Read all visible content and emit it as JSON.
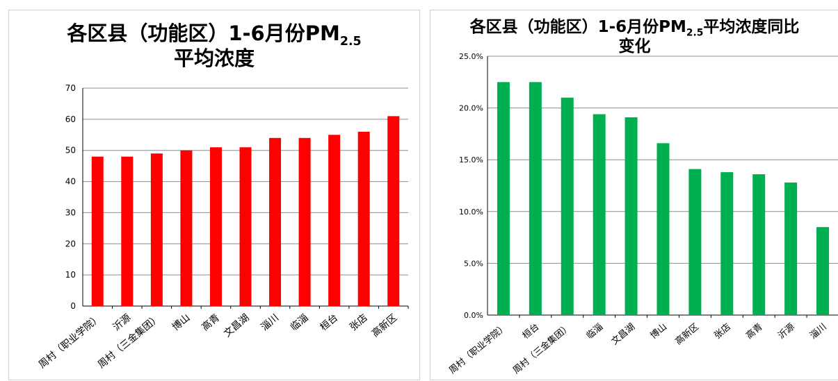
{
  "chart_data": [
    {
      "type": "bar",
      "title_main": "各区县（功能区）1-6月份PM",
      "title_sub": "2.5",
      "title_line2": "平均浓度",
      "categories": [
        "周村（职业学院）",
        "沂源",
        "周村（三金集团）",
        "博山",
        "高青",
        "文昌湖",
        "淄川",
        "临淄",
        "桓台",
        "张店",
        "高新区"
      ],
      "values": [
        48,
        48,
        49,
        50,
        51,
        51,
        54,
        54,
        55,
        56,
        61
      ],
      "ylim": [
        0,
        70
      ],
      "yticks": [
        "0",
        "10",
        "20",
        "30",
        "40",
        "50",
        "60",
        "70"
      ],
      "xlabel": "",
      "ylabel": "",
      "color": "#ff0000",
      "grid": true
    },
    {
      "type": "bar",
      "title_main": "各区县（功能区）1-6月份PM",
      "title_sub": "2.5",
      "title_tail": "平均浓度同比",
      "title_line2": "变化",
      "categories": [
        "周村（职业学院）",
        "桓台",
        "周村（三金集团）",
        "临淄",
        "文昌湖",
        "博山",
        "高新区",
        "张店",
        "高青",
        "沂源",
        "淄川"
      ],
      "values": [
        22.5,
        22.5,
        21.0,
        19.4,
        19.1,
        16.6,
        14.1,
        13.8,
        13.6,
        12.8,
        8.5
      ],
      "ylim": [
        0,
        25
      ],
      "yticks": [
        "0.0%",
        "5.0%",
        "10.0%",
        "15.0%",
        "20.0%",
        "25.0%"
      ],
      "xlabel": "",
      "ylabel": "",
      "color": "#00b050",
      "grid": true
    }
  ]
}
